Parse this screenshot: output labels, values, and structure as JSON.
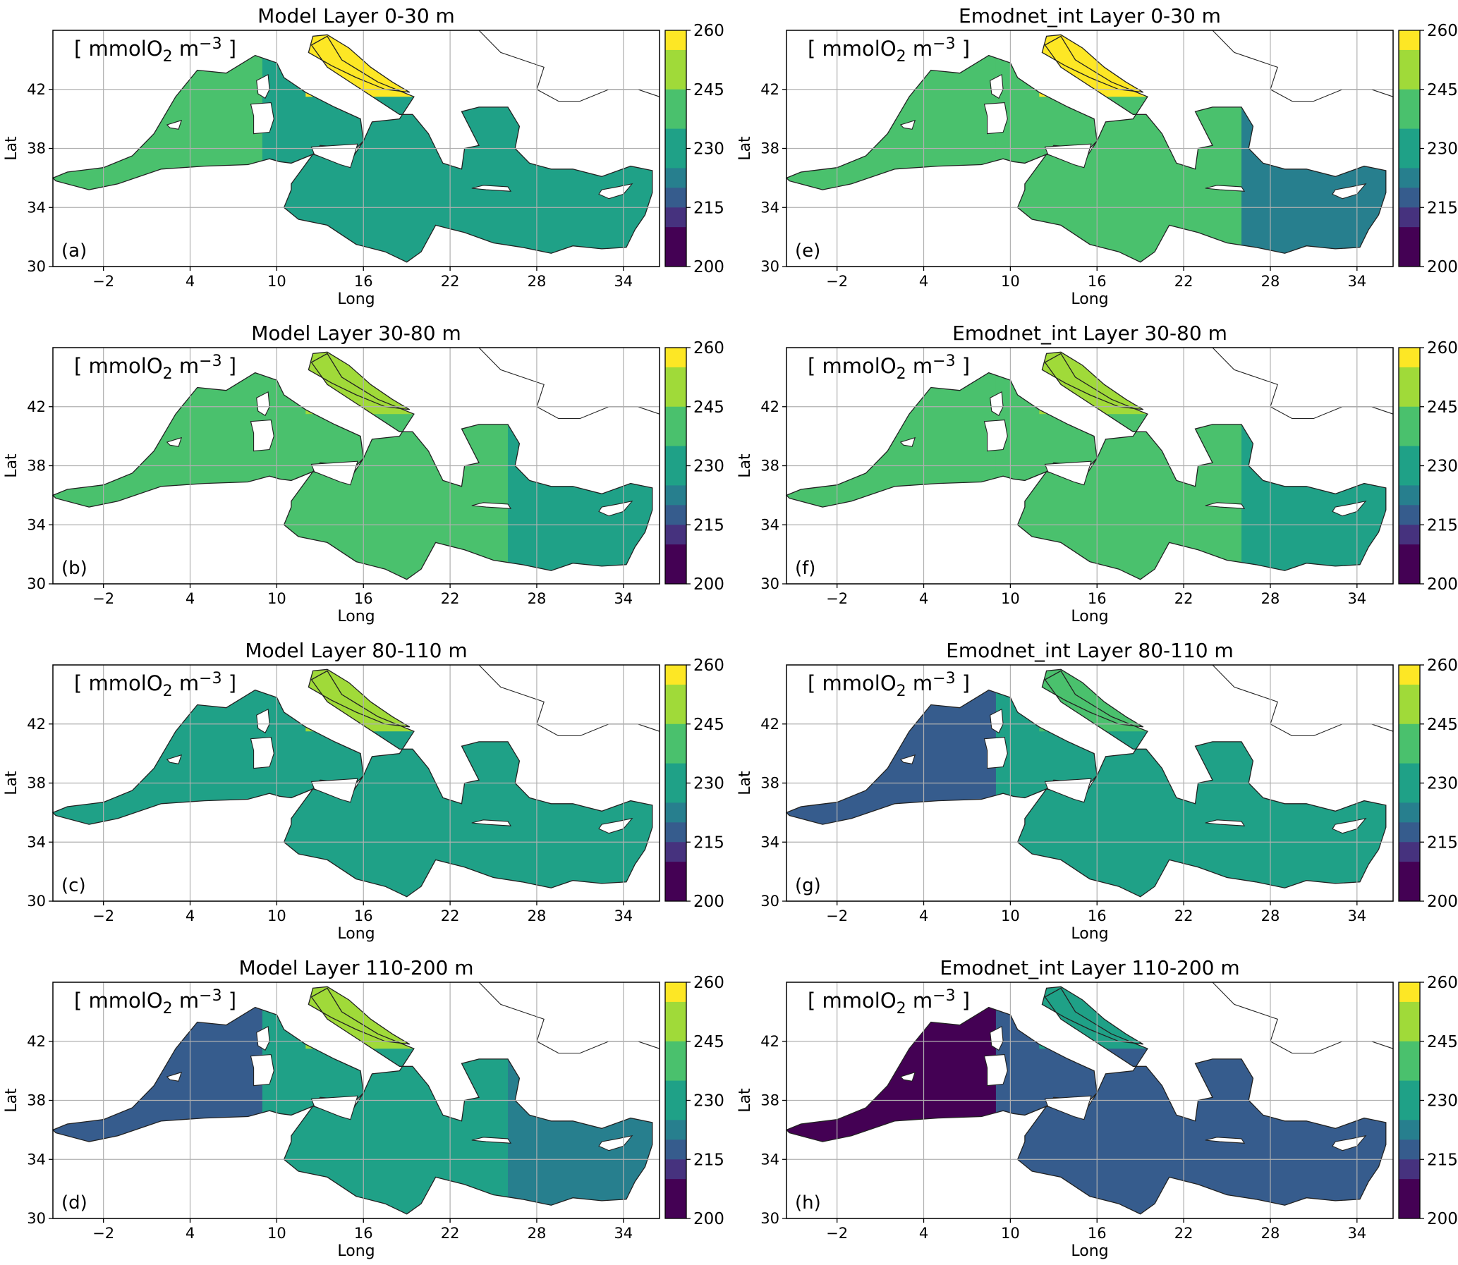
{
  "figure": {
    "unit_label": {
      "prefix": "[ mmolO",
      "subscript": "2",
      "middle": " m",
      "superscript": "−3",
      "suffix": " ]"
    },
    "xlabel": "Long",
    "ylabel": "Lat",
    "x_ticks": [
      "−2",
      "4",
      "10",
      "16",
      "22",
      "28",
      "34"
    ],
    "y_ticks": [
      "42",
      "38",
      "34",
      "30"
    ],
    "colorbar": {
      "ticks": [
        "260",
        "245",
        "230",
        "215",
        "200"
      ],
      "range": [
        200,
        260
      ],
      "levels": [
        {
          "from": 255,
          "to": 260,
          "color": "#fde725"
        },
        {
          "from": 250,
          "to": 255,
          "color": "#a0da39"
        },
        {
          "from": 245,
          "to": 250,
          "color": "#a0da39"
        },
        {
          "from": 240,
          "to": 245,
          "color": "#4ac16d"
        },
        {
          "from": 235,
          "to": 240,
          "color": "#4ac16d"
        },
        {
          "from": 230,
          "to": 235,
          "color": "#1fa187"
        },
        {
          "from": 225,
          "to": 230,
          "color": "#1fa187"
        },
        {
          "from": 220,
          "to": 225,
          "color": "#277f8e"
        },
        {
          "from": 215,
          "to": 220,
          "color": "#365c8d"
        },
        {
          "from": 210,
          "to": 215,
          "color": "#46327e"
        },
        {
          "from": 200,
          "to": 210,
          "color": "#440154"
        }
      ]
    }
  },
  "panels": [
    {
      "id": "a",
      "title": "Model Layer 0-30 m",
      "letter": "(a)",
      "basin_value": 230,
      "west_value": 240,
      "east_value": 225,
      "north_value": 255
    },
    {
      "id": "e",
      "title": "Emodnet_int Layer 0-30 m",
      "letter": "(e)",
      "basin_value": 235,
      "west_value": 240,
      "east_value": 220,
      "north_value": 258
    },
    {
      "id": "b",
      "title": "Model Layer 30-80 m",
      "letter": "(b)",
      "basin_value": 240,
      "west_value": 242,
      "east_value": 232,
      "north_value": 252
    },
    {
      "id": "f",
      "title": "Emodnet_int Layer 30-80 m",
      "letter": "(f)",
      "basin_value": 242,
      "west_value": 240,
      "east_value": 232,
      "north_value": 248
    },
    {
      "id": "c",
      "title": "Model Layer 80-110 m",
      "letter": "(c)",
      "basin_value": 232,
      "west_value": 228,
      "east_value": 230,
      "north_value": 248
    },
    {
      "id": "g",
      "title": "Emodnet_int Layer 80-110 m",
      "letter": "(g)",
      "basin_value": 232,
      "west_value": 218,
      "east_value": 230,
      "north_value": 242
    },
    {
      "id": "d",
      "title": "Model Layer 110-200 m",
      "letter": "(d)",
      "basin_value": 228,
      "west_value": 218,
      "east_value": 224,
      "north_value": 246
    },
    {
      "id": "h",
      "title": "Emodnet_int Layer 110-200 m",
      "letter": "(h)",
      "basin_value": 218,
      "west_value": 205,
      "east_value": 218,
      "north_value": 230
    }
  ]
}
